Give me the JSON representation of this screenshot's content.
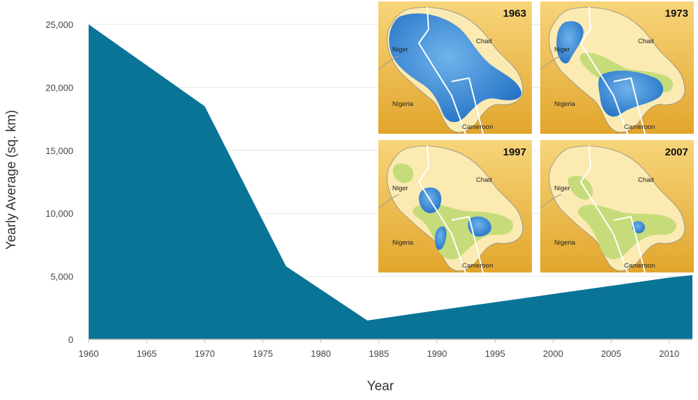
{
  "colors": {
    "area": "#0a7497",
    "grid": "#e6e6e6",
    "axis": "#bdbdbd",
    "map_bg_light": "#f7d57a",
    "map_bg_dark": "#e2a52c",
    "basin": "#fbeab2",
    "water": "#2f7fd0",
    "marsh": "#c6dc7a",
    "border": "#ffffff"
  },
  "chart_data": {
    "type": "area",
    "xlabel": "Year",
    "ylabel": "Yearly Average (sq. km)",
    "xlim": [
      1960,
      2012
    ],
    "ylim": [
      0,
      25000
    ],
    "x_ticks": [
      1960,
      1965,
      1970,
      1975,
      1980,
      1985,
      1990,
      1995,
      2000,
      2005,
      2010
    ],
    "y_ticks": [
      0,
      5000,
      10000,
      15000,
      20000,
      25000
    ],
    "y_tick_labels": [
      "0",
      "5,000",
      "10,000",
      "15,000",
      "20,000",
      "25,000"
    ],
    "grid": true,
    "series": [
      {
        "x": [
          1960,
          1970,
          1977,
          1984,
          1990,
          2000,
          2010,
          2012
        ],
        "y": [
          25000,
          18500,
          5800,
          1500,
          2300,
          3600,
          4900,
          5100
        ]
      }
    ]
  },
  "insets": [
    {
      "year": "1963",
      "countries": [
        "Niger",
        "Chad",
        "Nigeria",
        "Cameroon"
      ],
      "water_level": "full"
    },
    {
      "year": "1973",
      "countries": [
        "Niger",
        "Chad",
        "Nigeria",
        "Cameroon"
      ],
      "water_level": "reduced"
    },
    {
      "year": "1997",
      "countries": [
        "Niger",
        "Chad",
        "Nigeria",
        "Cameroon"
      ],
      "water_level": "small"
    },
    {
      "year": "2007",
      "countries": [
        "Niger",
        "Chad",
        "Nigeria",
        "Cameroon"
      ],
      "water_level": "minimal"
    }
  ]
}
